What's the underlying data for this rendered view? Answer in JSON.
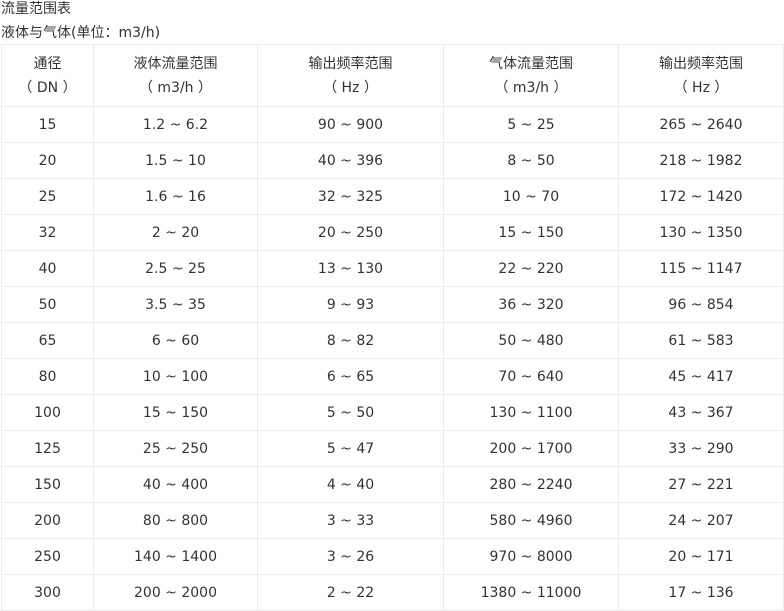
{
  "title": "流量范围表",
  "subtitle": "液体与气体(单位：m3/h)",
  "headers": [
    {
      "l1": "通径",
      "l2": "（ DN ）"
    },
    {
      "l1": "液体流量范围",
      "l2": "（ m3/h ）"
    },
    {
      "l1": "输出频率范围",
      "l2": "（ Hz ）"
    },
    {
      "l1": "气体流量范围",
      "l2": "（ m3/h ）"
    },
    {
      "l1": "输出频率范围",
      "l2": "（ Hz ）"
    }
  ],
  "rows": [
    [
      "15",
      "1.2 ~ 6.2",
      "90 ~ 900",
      "5 ~ 25",
      "265 ~ 2640"
    ],
    [
      "20",
      "1.5 ~ 10",
      "40 ~ 396",
      "8 ~ 50",
      "218 ~ 1982"
    ],
    [
      "25",
      "1.6 ~ 16",
      "32 ~ 325",
      "10 ~ 70",
      "172 ~ 1420"
    ],
    [
      "32",
      "2 ~ 20",
      "20 ~ 250",
      "15 ~ 150",
      "130 ~ 1350"
    ],
    [
      "40",
      "2.5 ~ 25",
      "13 ~ 130",
      "22 ~ 220",
      "115 ~ 1147"
    ],
    [
      "50",
      "3.5 ~ 35",
      "9 ~ 93",
      "36 ~ 320",
      "96 ~ 854"
    ],
    [
      "65",
      "6 ~ 60",
      "8 ~ 82",
      "50 ~ 480",
      "61 ~ 583"
    ],
    [
      "80",
      "10 ~ 100",
      "6 ~ 65",
      "70 ~ 640",
      "45 ~ 417"
    ],
    [
      "100",
      "15 ~ 150",
      "5 ~ 50",
      "130 ~ 1100",
      "43 ~ 367"
    ],
    [
      "125",
      "25 ~ 250",
      "5 ~ 47",
      "200 ~ 1700",
      "33 ~ 290"
    ],
    [
      "150",
      "40 ~ 400",
      "4 ~ 40",
      "280 ~ 2240",
      "27 ~ 221"
    ],
    [
      "200",
      "80 ~ 800",
      "3 ~ 33",
      "580 ~ 4960",
      "24 ~ 207"
    ],
    [
      "250",
      "140 ~ 1400",
      "3 ~ 26",
      "970 ~ 8000",
      "20 ~ 171"
    ],
    [
      "300",
      "200 ~ 2000",
      "2 ~ 22",
      "1380 ~ 11000",
      "17 ~ 136"
    ]
  ]
}
